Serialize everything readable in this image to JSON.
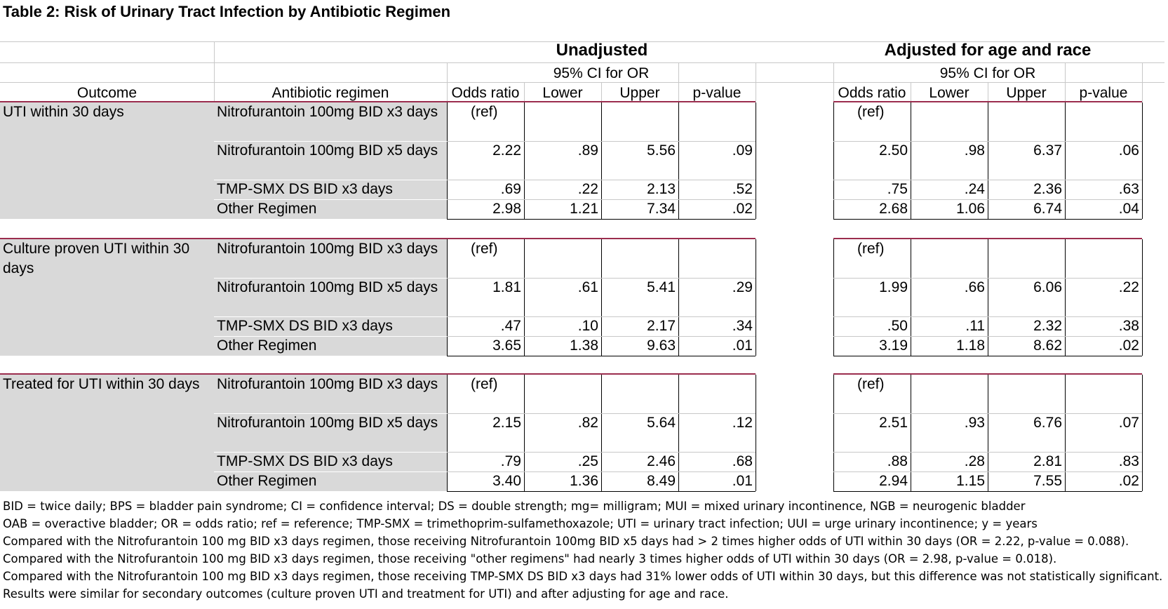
{
  "title": "Table 2:  Risk of Urinary Tract Infection by Antibiotic Regimen",
  "headers": {
    "unadjusted": "Unadjusted",
    "adjusted": "Adjusted for age and race",
    "ci": "95% CI for OR",
    "outcome": "Outcome",
    "regimen": "Antibiotic regimen",
    "odds_ratio": "Odds ratio",
    "lower": "Lower",
    "upper": "Upper",
    "pvalue": "p-value"
  },
  "groups": [
    {
      "outcome": "UTI within 30 days",
      "rows": [
        {
          "regimen": "Nitrofurantoin 100mg BID x3 days",
          "u_or": "(ref)",
          "u_lo": "",
          "u_hi": "",
          "u_p": "",
          "a_or": "(ref)",
          "a_lo": "",
          "a_hi": "",
          "a_p": ""
        },
        {
          "regimen": "Nitrofurantoin 100mg BID x5 days",
          "u_or": "2.22",
          "u_lo": ".89",
          "u_hi": "5.56",
          "u_p": ".09",
          "a_or": "2.50",
          "a_lo": ".98",
          "a_hi": "6.37",
          "a_p": ".06"
        },
        {
          "regimen": "TMP-SMX DS BID x3 days",
          "u_or": ".69",
          "u_lo": ".22",
          "u_hi": "2.13",
          "u_p": ".52",
          "a_or": ".75",
          "a_lo": ".24",
          "a_hi": "2.36",
          "a_p": ".63"
        },
        {
          "regimen": "Other Regimen",
          "u_or": "2.98",
          "u_lo": "1.21",
          "u_hi": "7.34",
          "u_p": ".02",
          "a_or": "2.68",
          "a_lo": "1.06",
          "a_hi": "6.74",
          "a_p": ".04"
        }
      ]
    },
    {
      "outcome": "Culture proven UTI within 30 days",
      "rows": [
        {
          "regimen": "Nitrofurantoin 100mg BID x3 days",
          "u_or": "(ref)",
          "u_lo": "",
          "u_hi": "",
          "u_p": "",
          "a_or": "(ref)",
          "a_lo": "",
          "a_hi": "",
          "a_p": ""
        },
        {
          "regimen": "Nitrofurantoin 100mg BID x5 days",
          "u_or": "1.81",
          "u_lo": ".61",
          "u_hi": "5.41",
          "u_p": ".29",
          "a_or": "1.99",
          "a_lo": ".66",
          "a_hi": "6.06",
          "a_p": ".22"
        },
        {
          "regimen": "TMP-SMX DS BID x3 days",
          "u_or": ".47",
          "u_lo": ".10",
          "u_hi": "2.17",
          "u_p": ".34",
          "a_or": ".50",
          "a_lo": ".11",
          "a_hi": "2.32",
          "a_p": ".38"
        },
        {
          "regimen": "Other Regimen",
          "u_or": "3.65",
          "u_lo": "1.38",
          "u_hi": "9.63",
          "u_p": ".01",
          "a_or": "3.19",
          "a_lo": "1.18",
          "a_hi": "8.62",
          "a_p": ".02"
        }
      ]
    },
    {
      "outcome": "Treated for UTI within 30 days",
      "rows": [
        {
          "regimen": "Nitrofurantoin 100mg BID x3 days",
          "u_or": "(ref)",
          "u_lo": "",
          "u_hi": "",
          "u_p": "",
          "a_or": "(ref)",
          "a_lo": "",
          "a_hi": "",
          "a_p": ""
        },
        {
          "regimen": "Nitrofurantoin 100mg BID x5 days",
          "u_or": "2.15",
          "u_lo": ".82",
          "u_hi": "5.64",
          "u_p": ".12",
          "a_or": "2.51",
          "a_lo": ".93",
          "a_hi": "6.76",
          "a_p": ".07"
        },
        {
          "regimen": "TMP-SMX DS BID x3 days",
          "u_or": ".79",
          "u_lo": ".25",
          "u_hi": "2.46",
          "u_p": ".68",
          "a_or": ".88",
          "a_lo": ".28",
          "a_hi": "2.81",
          "a_p": ".83"
        },
        {
          "regimen": "Other Regimen",
          "u_or": "3.40",
          "u_lo": "1.36",
          "u_hi": "8.49",
          "u_p": ".01",
          "a_or": "2.94",
          "a_lo": "1.15",
          "a_hi": "7.55",
          "a_p": ".02"
        }
      ]
    }
  ],
  "notes": [
    "BID = twice daily; BPS = bladder pain syndrome; CI = confidence interval; DS = double strength; mg= milligram; MUI = mixed urinary incontinence, NGB = neurogenic bladder",
    "OAB = overactive bladder; OR = odds ratio; ref = reference; TMP-SMX = trimethoprim-sulfamethoxazole; UTI = urinary tract infection; UUI = urge urinary incontinence; y = years",
    "Compared with the Nitrofurantoin 100 mg BID x3 days regimen, those receiving Nitrofurantoin 100mg BID x5 days had > 2 times higher odds of UTI within 30 days (OR = 2.22, p-value = 0.088).",
    "Compared with the Nitrofurantoin 100 mg BID x3 days regimen, those receiving \"other regimens\" had nearly 3 times higher odds of UTI within 30 days (OR = 2.98, p-value = 0.018).",
    "Compared with the Nitrofurantoin 100 mg BID x3 days regimen, those receiving TMP-SMX DS BID x3 days had 31% lower odds of UTI within 30 days, but this difference was not statistically significant.",
    "Results were similar for secondary outcomes (culture proven UTI and treatment for UTI) and after adjusting for age and race."
  ]
}
